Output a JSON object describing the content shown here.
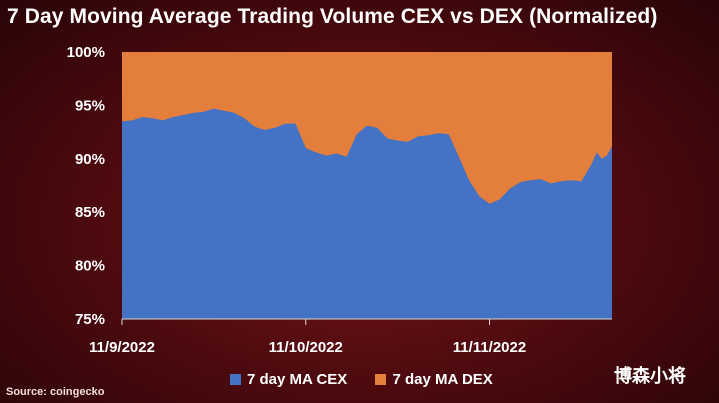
{
  "chart_data": {
    "type": "area",
    "title": "7 Day Moving Average Trading Volume CEX vs DEX (Normalized)",
    "xlabel": "",
    "ylabel": "",
    "ylim": [
      75,
      100
    ],
    "y_ticks": [
      "75%",
      "80%",
      "85%",
      "90%",
      "95%",
      "100%"
    ],
    "x_tick_labels": [
      {
        "label": "11/9/2022",
        "x": 0
      },
      {
        "label": "11/10/2022",
        "x": 36
      },
      {
        "label": "11/11/2022",
        "x": 72
      }
    ],
    "x_range": [
      0,
      96
    ],
    "legend": "bottom",
    "grid": false,
    "series": [
      {
        "name": "7 day MA CEX",
        "color": "#4472c4",
        "stacked_base": 75,
        "values": [
          93.5,
          93.6,
          93.9,
          93.8,
          93.6,
          93.9,
          94.1,
          94.3,
          94.4,
          94.7,
          94.5,
          94.3,
          93.8,
          93.0,
          92.7,
          92.9,
          93.3,
          93.3,
          91.0,
          90.6,
          90.3,
          90.5,
          90.2,
          92.3,
          93.1,
          92.9,
          91.9,
          91.7,
          91.6,
          92.1,
          92.2,
          92.4,
          92.3,
          90.2,
          88.0,
          86.5,
          85.8,
          86.2,
          87.2,
          87.8,
          88.0,
          88.1,
          87.7,
          87.9,
          88.0,
          87.9,
          88.7,
          89.5,
          90.6,
          90.0,
          90.3,
          91.2
        ],
        "x": [
          0,
          2,
          4,
          6,
          8,
          10,
          12,
          14,
          16,
          18,
          20,
          22,
          24,
          26,
          28,
          30,
          32,
          34,
          36,
          38,
          40,
          42,
          44,
          46,
          48,
          50,
          52,
          54,
          56,
          58,
          60,
          62,
          64,
          66,
          68,
          70,
          72,
          74,
          76,
          78,
          80,
          82,
          84,
          86,
          88,
          90,
          91,
          92,
          93,
          94,
          95,
          96
        ]
      },
      {
        "name": "7 day MA DEX",
        "color": "#e37e3c",
        "stacked_top": 100
      }
    ]
  },
  "source_text": "Source: coingecko",
  "watermark_text": "博森小将"
}
